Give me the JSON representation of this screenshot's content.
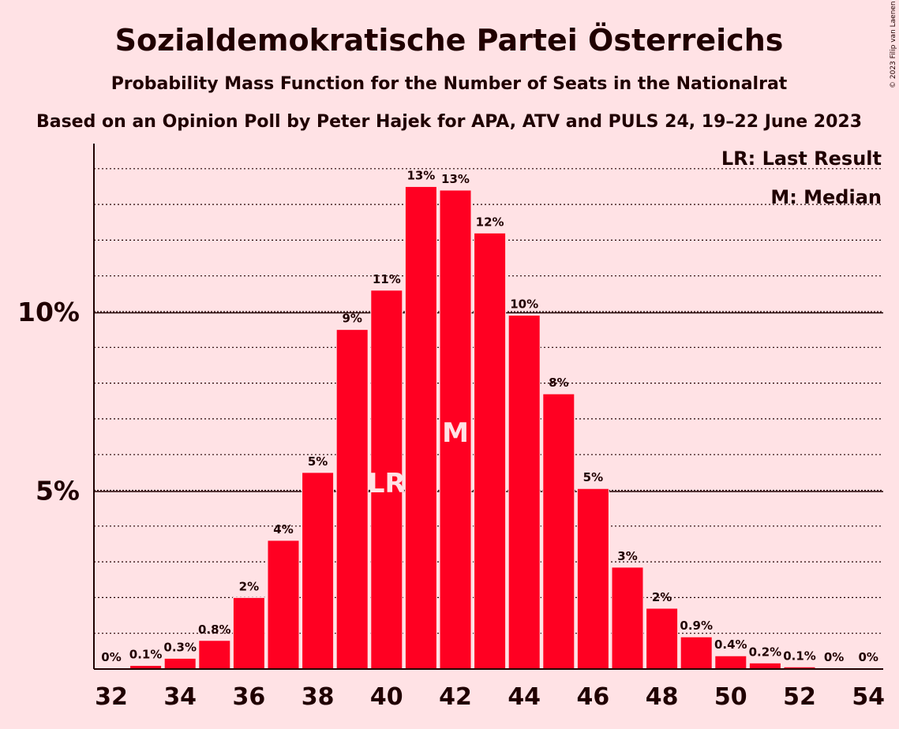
{
  "chart_data": {
    "type": "bar",
    "title": "Sozialdemokratische Partei Österreichs",
    "subtitle": "Probability Mass Function for the Number of Seats in the Nationalrat",
    "subtitle2": "Based on an Opinion Poll by Peter Hajek for APA, ATV and PULS 24, 19–22 June 2023",
    "copyright": "© 2023 Filip van Laenen",
    "x": [
      32,
      33,
      34,
      35,
      36,
      37,
      38,
      39,
      40,
      41,
      42,
      43,
      44,
      45,
      46,
      47,
      48,
      49,
      50,
      51,
      52,
      53,
      54
    ],
    "values": [
      0.0,
      0.1,
      0.3,
      0.8,
      2.0,
      3.6,
      5.5,
      9.5,
      10.6,
      13.5,
      13.4,
      12.2,
      9.9,
      7.7,
      5.05,
      2.85,
      1.7,
      0.9,
      0.37,
      0.17,
      0.06,
      0.0,
      0.0
    ],
    "labels": [
      "0%",
      "0.1%",
      "0.3%",
      "0.8%",
      "2%",
      "4%",
      "5%",
      "9%",
      "11%",
      "13%",
      "13%",
      "12%",
      "10%",
      "8%",
      "5%",
      "3%",
      "2%",
      "0.9%",
      "0.4%",
      "0.2%",
      "0.1%",
      "0%",
      "0%"
    ],
    "xticks": [
      "32",
      "34",
      "36",
      "38",
      "40",
      "42",
      "44",
      "46",
      "48",
      "50",
      "52",
      "54"
    ],
    "yticks": [
      {
        "value": 5,
        "label": "5%"
      },
      {
        "value": 10,
        "label": "10%"
      }
    ],
    "ylim": [
      0,
      14.7
    ],
    "last_result": {
      "x": 40,
      "label": "LR"
    },
    "median": {
      "x": 42,
      "label": "M"
    },
    "legend": [
      "LR: Last Result",
      "M: Median"
    ],
    "bar_color": "#FF0022",
    "background": "#FFE2E5"
  }
}
